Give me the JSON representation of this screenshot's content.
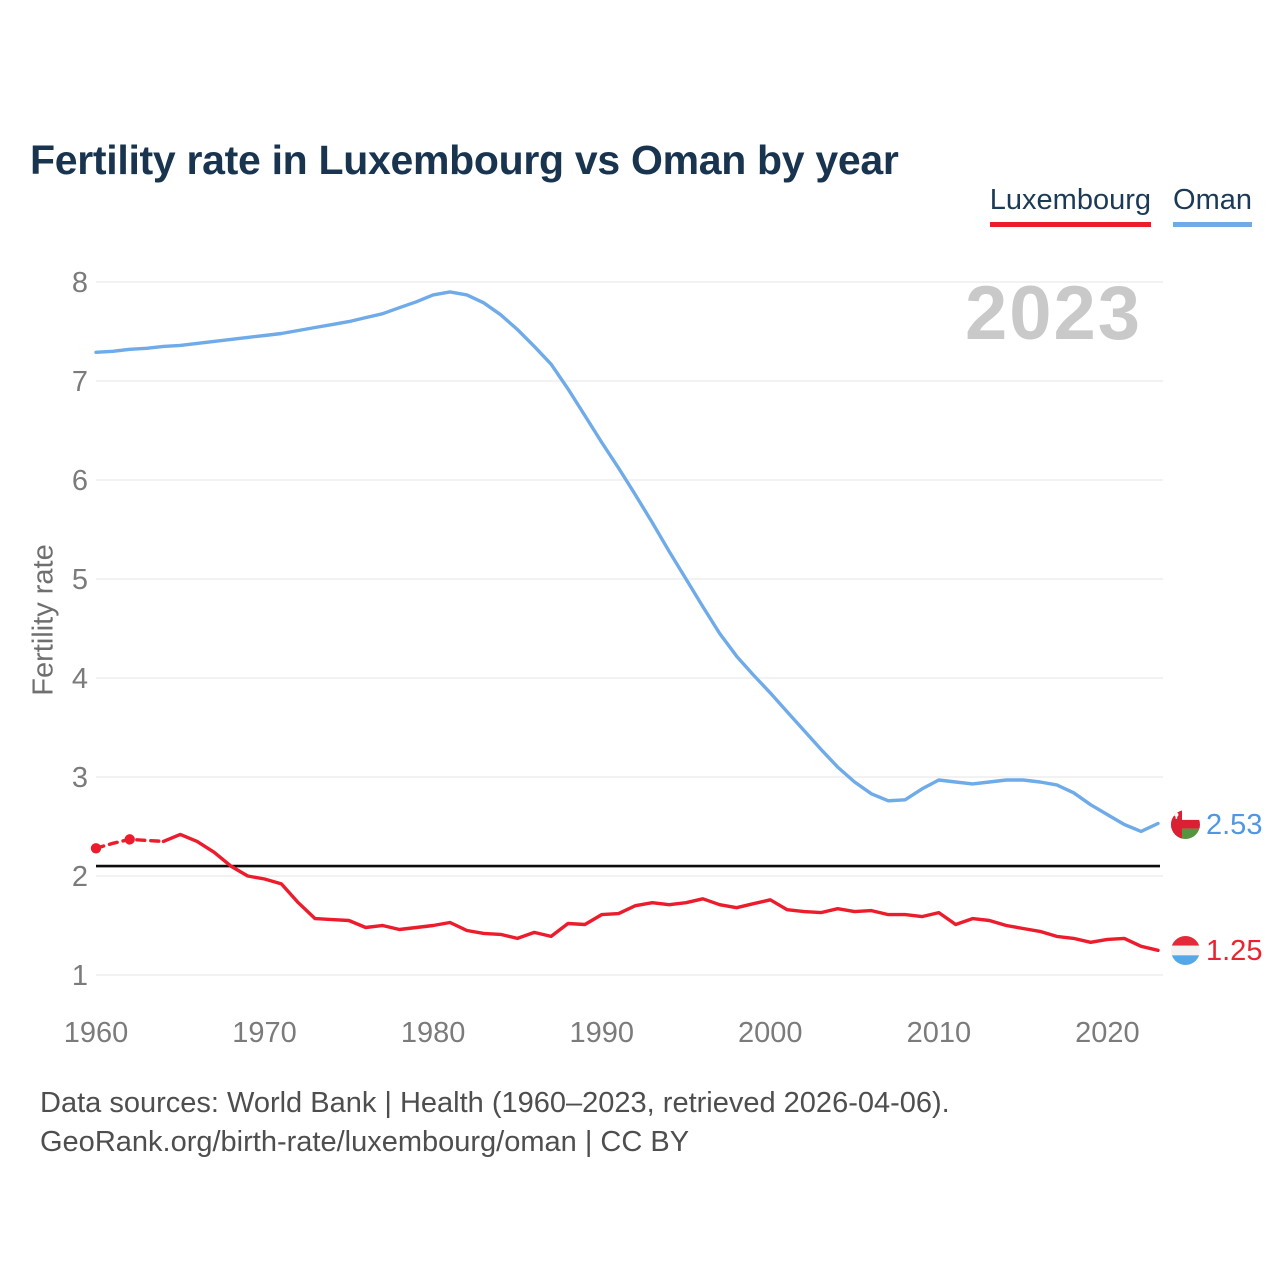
{
  "title": "Fertility rate in Luxembourg vs Oman by year",
  "watermark": "2023",
  "legend": {
    "items": [
      {
        "label": "Luxembourg",
        "color": "#ec1c2c"
      },
      {
        "label": "Oman",
        "color": "#6fabe9"
      }
    ]
  },
  "y_axis": {
    "label": "Fertility rate",
    "ticks": [
      8,
      7,
      6,
      5,
      4,
      3,
      2,
      1
    ]
  },
  "x_axis": {
    "ticks": [
      1960,
      1970,
      1980,
      1990,
      2000,
      2010,
      2020
    ]
  },
  "reference_line": {
    "value": 2.1,
    "color": "#0d0d0d"
  },
  "end_labels": {
    "oman": {
      "value": "2.53",
      "flag": "oman-flag"
    },
    "luxembourg": {
      "value": "1.25",
      "flag": "luxembourg-flag"
    }
  },
  "footer": {
    "line1": "Data sources: World Bank | Health (1960–2023, retrieved 2026-04-06).",
    "line2": "GeoRank.org/birth-rate/luxembourg/oman | CC BY"
  },
  "chart_data": {
    "type": "line",
    "title": "Fertility rate in Luxembourg vs Oman by year",
    "ylabel": "Fertility rate",
    "ylim": [
      1,
      8
    ],
    "xlim": [
      1960,
      2023
    ],
    "grid": "horizontal",
    "legend_position": "top-right",
    "x": [
      1960,
      1961,
      1962,
      1963,
      1964,
      1965,
      1966,
      1967,
      1968,
      1969,
      1970,
      1971,
      1972,
      1973,
      1974,
      1975,
      1976,
      1977,
      1978,
      1979,
      1980,
      1981,
      1982,
      1983,
      1984,
      1985,
      1986,
      1987,
      1988,
      1989,
      1990,
      1991,
      1992,
      1993,
      1994,
      1995,
      1996,
      1997,
      1998,
      1999,
      2000,
      2001,
      2002,
      2003,
      2004,
      2005,
      2006,
      2007,
      2008,
      2009,
      2010,
      2011,
      2012,
      2013,
      2014,
      2015,
      2016,
      2017,
      2018,
      2019,
      2020,
      2021,
      2022,
      2023
    ],
    "series": [
      {
        "name": "Oman",
        "color": "#6fabe9",
        "values": [
          7.29,
          7.3,
          7.32,
          7.33,
          7.35,
          7.36,
          7.38,
          7.4,
          7.42,
          7.44,
          7.46,
          7.48,
          7.51,
          7.54,
          7.57,
          7.6,
          7.64,
          7.68,
          7.74,
          7.8,
          7.87,
          7.9,
          7.87,
          7.79,
          7.67,
          7.52,
          7.35,
          7.17,
          6.92,
          6.65,
          6.38,
          6.12,
          5.85,
          5.57,
          5.28,
          5.0,
          4.72,
          4.45,
          4.22,
          4.03,
          3.85,
          3.66,
          3.47,
          3.28,
          3.1,
          2.95,
          2.83,
          2.76,
          2.77,
          2.88,
          2.97,
          2.95,
          2.93,
          2.95,
          2.97,
          2.97,
          2.95,
          2.92,
          2.84,
          2.72,
          2.62,
          2.52,
          2.45,
          2.53
        ]
      },
      {
        "name": "Luxembourg",
        "color": "#ec1c2c",
        "dashed_through_year": 1964,
        "marker_years": [
          1960,
          1962
        ],
        "values": [
          2.28,
          2.33,
          2.37,
          2.36,
          2.35,
          2.42,
          2.35,
          2.24,
          2.1,
          2.0,
          1.97,
          1.92,
          1.73,
          1.57,
          1.56,
          1.55,
          1.48,
          1.5,
          1.46,
          1.48,
          1.5,
          1.53,
          1.45,
          1.42,
          1.41,
          1.37,
          1.43,
          1.39,
          1.52,
          1.51,
          1.61,
          1.62,
          1.7,
          1.73,
          1.71,
          1.73,
          1.77,
          1.71,
          1.68,
          1.72,
          1.76,
          1.66,
          1.64,
          1.63,
          1.67,
          1.64,
          1.65,
          1.61,
          1.61,
          1.59,
          1.63,
          1.51,
          1.57,
          1.55,
          1.5,
          1.47,
          1.44,
          1.39,
          1.37,
          1.33,
          1.36,
          1.37,
          1.29,
          1.25
        ]
      }
    ]
  }
}
